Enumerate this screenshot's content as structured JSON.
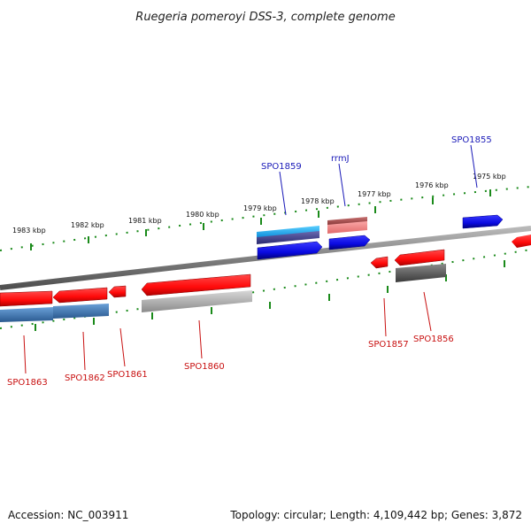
{
  "title": "Ruegeria pomeroyi DSS-3, complete genome",
  "tick_labels": [
    "1975 kbp",
    "1976 kbp",
    "1977 kbp",
    "1978 kbp",
    "1979 kbp",
    "1980 kbp",
    "1981 kbp",
    "1982 kbp",
    "1983 kbp"
  ],
  "genes": [
    {
      "name": "SPO1855",
      "color": "#1a1ab8"
    },
    {
      "name": "rrmJ",
      "color": "#1a1ab8"
    },
    {
      "name": "SPO1859",
      "color": "#1a1ab8"
    },
    {
      "name": "SPO1856",
      "color": "#c81010"
    },
    {
      "name": "SPO1857",
      "color": "#c81010"
    },
    {
      "name": "SPO1860",
      "color": "#c81010"
    },
    {
      "name": "SPO1861",
      "color": "#c81010"
    },
    {
      "name": "SPO1862",
      "color": "#c81010"
    },
    {
      "name": "SPO1863",
      "color": "#c81010"
    }
  ],
  "colors": {
    "forward_cds": "#0a0ae0",
    "reverse_cds": "#ff0a0a",
    "backbone": "#808080",
    "tick": "#1a8a1a"
  },
  "footer": {
    "accession": "Accession: NC_003911",
    "summary": "Topology: circular; Length: 4,109,442 bp; Genes: 3,872"
  }
}
